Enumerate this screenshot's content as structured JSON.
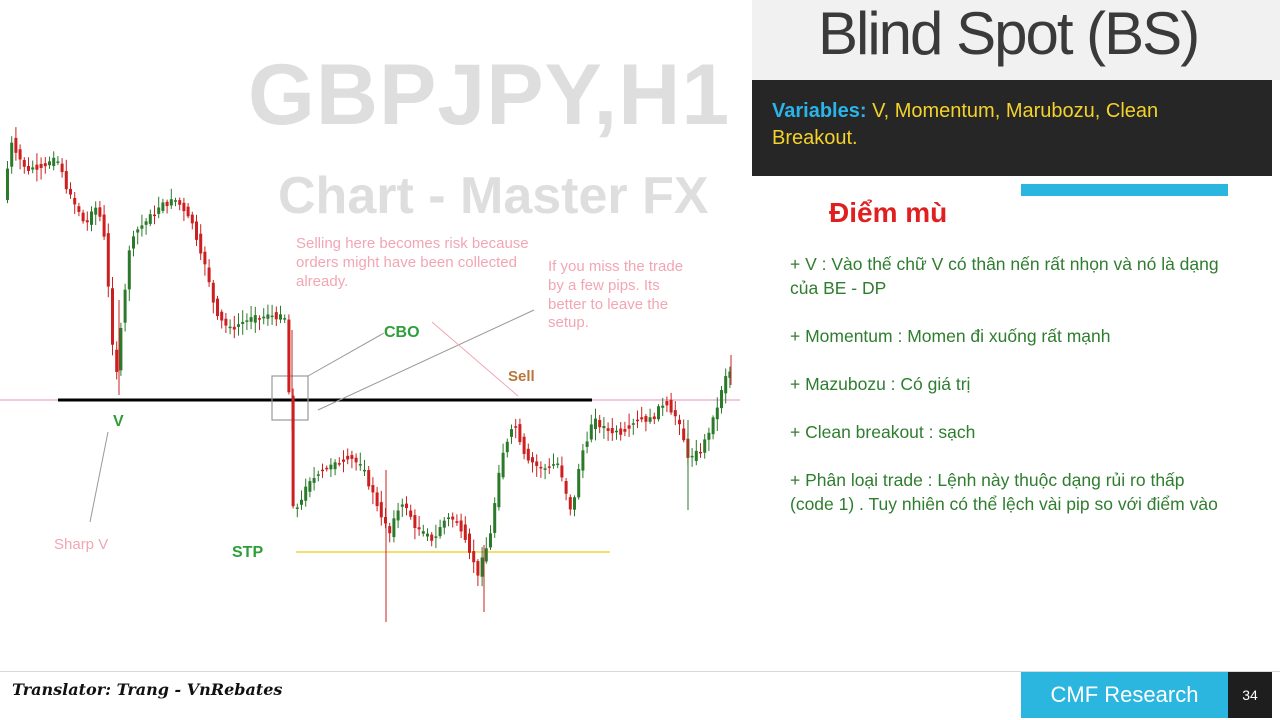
{
  "chart": {
    "watermark_title": "GBPJPY,H1",
    "watermark_subtitle": "Chart - Master FX",
    "note_risk": "Selling here becomes risk because orders might have been collected already.",
    "note_miss": "If you miss the trade by a few pips. Its better to leave the setup.",
    "label_cbo": "CBO",
    "label_sell": "Sell",
    "label_v": "V",
    "label_sharp_v": "Sharp V",
    "label_stp": "STP",
    "colors": {
      "bull": "#2b7a2b",
      "bear": "#cc1f1f",
      "level": "#000000",
      "stp": "#f2d341",
      "pink": "#e58fc0"
    }
  },
  "title": "Blind Spot (BS)",
  "variables": {
    "key": "Variables:",
    "value": " V, Momentum, Marubozu, Clean Breakout."
  },
  "vn_title": "Điểm mù",
  "bullets": [
    "+ V : Vào thế chữ V có thân nến rất nhọn và nó là dạng của BE - DP",
    "+ Momentum : Momen đi xuống rất mạnh",
    "+ Mazubozu : Có giá trị",
    "+ Clean breakout : sạch",
    "+ Phân loại trade : Lệnh này thuộc dạng rủi ro thấp (code 1) . Tuy nhiên có thể lệch vài pip so với điểm vào"
  ],
  "footer": {
    "translator": "Translator: Trang - VnRebates",
    "brand": "CMF Research",
    "page": "34"
  }
}
